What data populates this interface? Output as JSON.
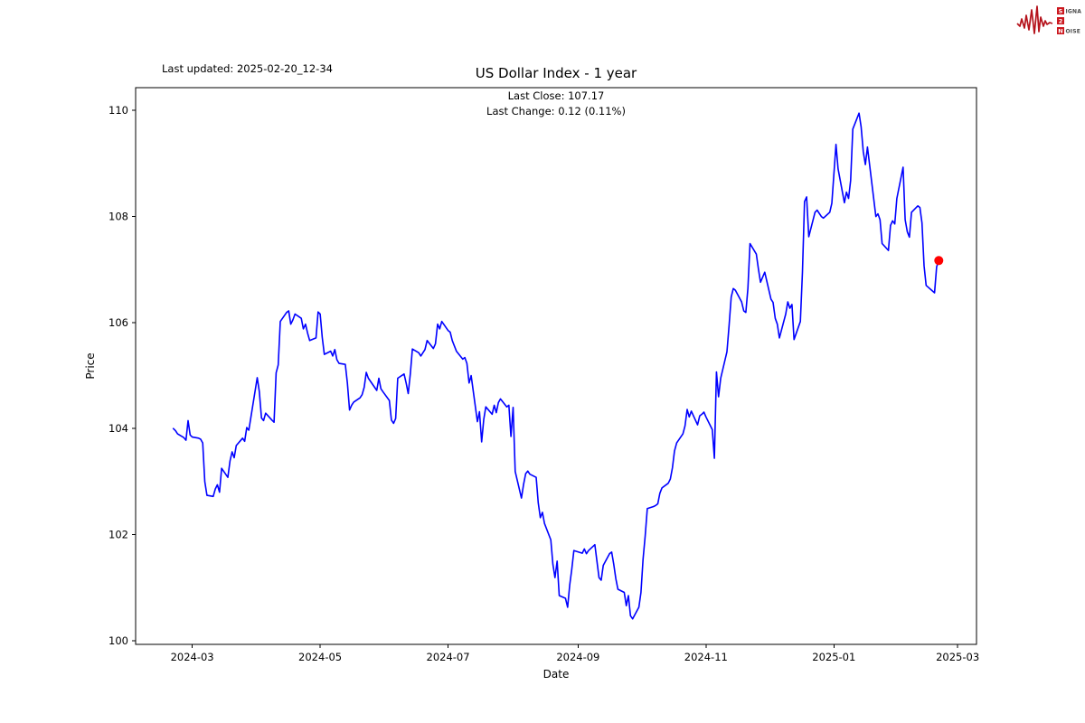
{
  "header": {
    "last_updated": "Last updated: 2025-02-20_12-34",
    "title": "US Dollar Index - 1 year",
    "subtitle_line1": "Last Close: 107.17",
    "subtitle_line2": "Last Change: 0.12 (0.11%)"
  },
  "logo": {
    "row1_boxed": "S",
    "row1_rest": "IGNAL",
    "row2_boxed": "2",
    "row2_rest": "",
    "row3_boxed": "N",
    "row3_rest": "OISE",
    "wave_color": "#b5121b",
    "box_color": "#cb171e",
    "text_color": "#4a4a4a"
  },
  "chart_data": {
    "type": "line",
    "title": "US Dollar Index - 1 year",
    "xlabel": "Date",
    "ylabel": "Price",
    "line_color": "#0000ff",
    "marker_color": "#ff0000",
    "last_close": 107.17,
    "last_change": 0.12,
    "last_change_pct": 0.11,
    "grid": false,
    "x_tick_labels": [
      "2024-03",
      "2024-05",
      "2024-07",
      "2024-09",
      "2024-11",
      "2025-01",
      "2025-03"
    ],
    "x_tick_dates": [
      "2024-03-01",
      "2024-05-01",
      "2024-07-01",
      "2024-09-01",
      "2024-11-01",
      "2025-01-01",
      "2025-03-01"
    ],
    "y_ticks": [
      100,
      102,
      104,
      106,
      108,
      110
    ],
    "ylim": [
      99.93,
      110.43
    ],
    "xlim": [
      "2024-02-03",
      "2025-03-10"
    ],
    "series": [
      {
        "name": "US Dollar Index",
        "points": [
          [
            "2024-02-21",
            104.0
          ],
          [
            "2024-02-22",
            103.96
          ],
          [
            "2024-02-23",
            103.9
          ],
          [
            "2024-02-26",
            103.83
          ],
          [
            "2024-02-27",
            103.78
          ],
          [
            "2024-02-28",
            104.15
          ],
          [
            "2024-02-29",
            103.88
          ],
          [
            "2024-03-01",
            103.84
          ],
          [
            "2024-03-04",
            103.82
          ],
          [
            "2024-03-05",
            103.8
          ],
          [
            "2024-03-06",
            103.73
          ],
          [
            "2024-03-07",
            103.0
          ],
          [
            "2024-03-08",
            102.74
          ],
          [
            "2024-03-11",
            102.72
          ],
          [
            "2024-03-12",
            102.86
          ],
          [
            "2024-03-13",
            102.94
          ],
          [
            "2024-03-14",
            102.8
          ],
          [
            "2024-03-15",
            103.25
          ],
          [
            "2024-03-18",
            103.08
          ],
          [
            "2024-03-19",
            103.39
          ],
          [
            "2024-03-20",
            103.56
          ],
          [
            "2024-03-21",
            103.45
          ],
          [
            "2024-03-22",
            103.68
          ],
          [
            "2024-03-25",
            103.82
          ],
          [
            "2024-03-26",
            103.76
          ],
          [
            "2024-03-27",
            104.02
          ],
          [
            "2024-03-28",
            103.97
          ],
          [
            "2024-04-01",
            104.96
          ],
          [
            "2024-04-02",
            104.7
          ],
          [
            "2024-04-03",
            104.2
          ],
          [
            "2024-04-04",
            104.15
          ],
          [
            "2024-04-05",
            104.29
          ],
          [
            "2024-04-08",
            104.16
          ],
          [
            "2024-04-09",
            104.12
          ],
          [
            "2024-04-10",
            105.05
          ],
          [
            "2024-04-11",
            105.2
          ],
          [
            "2024-04-12",
            106.02
          ],
          [
            "2024-04-15",
            106.19
          ],
          [
            "2024-04-16",
            106.22
          ],
          [
            "2024-04-17",
            105.97
          ],
          [
            "2024-04-18",
            106.05
          ],
          [
            "2024-04-19",
            106.16
          ],
          [
            "2024-04-22",
            106.08
          ],
          [
            "2024-04-23",
            105.88
          ],
          [
            "2024-04-24",
            105.97
          ],
          [
            "2024-04-25",
            105.8
          ],
          [
            "2024-04-26",
            105.66
          ],
          [
            "2024-04-29",
            105.71
          ],
          [
            "2024-04-30",
            106.2
          ],
          [
            "2024-05-01",
            106.16
          ],
          [
            "2024-05-02",
            105.72
          ],
          [
            "2024-05-03",
            105.4
          ],
          [
            "2024-05-06",
            105.46
          ],
          [
            "2024-05-07",
            105.37
          ],
          [
            "2024-05-08",
            105.49
          ],
          [
            "2024-05-09",
            105.3
          ],
          [
            "2024-05-10",
            105.23
          ],
          [
            "2024-05-13",
            105.21
          ],
          [
            "2024-05-14",
            104.86
          ],
          [
            "2024-05-15",
            104.35
          ],
          [
            "2024-05-16",
            104.44
          ],
          [
            "2024-05-17",
            104.5
          ],
          [
            "2024-05-20",
            104.58
          ],
          [
            "2024-05-21",
            104.64
          ],
          [
            "2024-05-22",
            104.78
          ],
          [
            "2024-05-23",
            105.06
          ],
          [
            "2024-05-24",
            104.95
          ],
          [
            "2024-05-28",
            104.72
          ],
          [
            "2024-05-29",
            104.95
          ],
          [
            "2024-05-30",
            104.75
          ],
          [
            "2024-05-31",
            104.69
          ],
          [
            "2024-06-03",
            104.53
          ],
          [
            "2024-06-04",
            104.16
          ],
          [
            "2024-06-05",
            104.1
          ],
          [
            "2024-06-06",
            104.19
          ],
          [
            "2024-06-07",
            104.95
          ],
          [
            "2024-06-10",
            105.03
          ],
          [
            "2024-06-11",
            104.86
          ],
          [
            "2024-06-12",
            104.66
          ],
          [
            "2024-06-13",
            105.03
          ],
          [
            "2024-06-14",
            105.5
          ],
          [
            "2024-06-17",
            105.43
          ],
          [
            "2024-06-18",
            105.37
          ],
          [
            "2024-06-20",
            105.49
          ],
          [
            "2024-06-21",
            105.66
          ],
          [
            "2024-06-24",
            105.51
          ],
          [
            "2024-06-25",
            105.6
          ],
          [
            "2024-06-26",
            105.97
          ],
          [
            "2024-06-27",
            105.88
          ],
          [
            "2024-06-28",
            106.02
          ],
          [
            "2024-07-01",
            105.85
          ],
          [
            "2024-07-02",
            105.82
          ],
          [
            "2024-07-03",
            105.66
          ],
          [
            "2024-07-05",
            105.46
          ],
          [
            "2024-07-08",
            105.31
          ],
          [
            "2024-07-09",
            105.34
          ],
          [
            "2024-07-10",
            105.23
          ],
          [
            "2024-07-11",
            104.86
          ],
          [
            "2024-07-12",
            105.0
          ],
          [
            "2024-07-15",
            104.13
          ],
          [
            "2024-07-16",
            104.32
          ],
          [
            "2024-07-17",
            103.75
          ],
          [
            "2024-07-18",
            104.17
          ],
          [
            "2024-07-19",
            104.41
          ],
          [
            "2024-07-22",
            104.27
          ],
          [
            "2024-07-23",
            104.44
          ],
          [
            "2024-07-24",
            104.3
          ],
          [
            "2024-07-25",
            104.49
          ],
          [
            "2024-07-26",
            104.56
          ],
          [
            "2024-07-29",
            104.41
          ],
          [
            "2024-07-30",
            104.44
          ],
          [
            "2024-07-31",
            103.85
          ],
          [
            "2024-08-01",
            104.4
          ],
          [
            "2024-08-02",
            103.19
          ],
          [
            "2024-08-05",
            102.69
          ],
          [
            "2024-08-06",
            102.95
          ],
          [
            "2024-08-07",
            103.15
          ],
          [
            "2024-08-08",
            103.2
          ],
          [
            "2024-08-09",
            103.14
          ],
          [
            "2024-08-12",
            103.08
          ],
          [
            "2024-08-13",
            102.6
          ],
          [
            "2024-08-14",
            102.32
          ],
          [
            "2024-08-15",
            102.42
          ],
          [
            "2024-08-16",
            102.21
          ],
          [
            "2024-08-19",
            101.9
          ],
          [
            "2024-08-20",
            101.44
          ],
          [
            "2024-08-21",
            101.19
          ],
          [
            "2024-08-22",
            101.5
          ],
          [
            "2024-08-23",
            100.85
          ],
          [
            "2024-08-26",
            100.8
          ],
          [
            "2024-08-27",
            100.63
          ],
          [
            "2024-08-28",
            101.05
          ],
          [
            "2024-08-29",
            101.35
          ],
          [
            "2024-08-30",
            101.7
          ],
          [
            "2024-09-03",
            101.65
          ],
          [
            "2024-09-04",
            101.73
          ],
          [
            "2024-09-05",
            101.64
          ],
          [
            "2024-09-06",
            101.7
          ],
          [
            "2024-09-09",
            101.81
          ],
          [
            "2024-09-10",
            101.5
          ],
          [
            "2024-09-11",
            101.19
          ],
          [
            "2024-09-12",
            101.14
          ],
          [
            "2024-09-13",
            101.42
          ],
          [
            "2024-09-16",
            101.64
          ],
          [
            "2024-09-17",
            101.67
          ],
          [
            "2024-09-18",
            101.44
          ],
          [
            "2024-09-19",
            101.17
          ],
          [
            "2024-09-20",
            100.97
          ],
          [
            "2024-09-23",
            100.91
          ],
          [
            "2024-09-24",
            100.66
          ],
          [
            "2024-09-25",
            100.85
          ],
          [
            "2024-09-26",
            100.47
          ],
          [
            "2024-09-27",
            100.41
          ],
          [
            "2024-09-30",
            100.63
          ],
          [
            "2024-10-01",
            100.91
          ],
          [
            "2024-10-02",
            101.53
          ],
          [
            "2024-10-03",
            101.98
          ],
          [
            "2024-10-04",
            102.49
          ],
          [
            "2024-10-07",
            102.53
          ],
          [
            "2024-10-08",
            102.55
          ],
          [
            "2024-10-09",
            102.58
          ],
          [
            "2024-10-10",
            102.78
          ],
          [
            "2024-10-11",
            102.88
          ],
          [
            "2024-10-14",
            102.97
          ],
          [
            "2024-10-15",
            103.05
          ],
          [
            "2024-10-16",
            103.26
          ],
          [
            "2024-10-17",
            103.58
          ],
          [
            "2024-10-18",
            103.73
          ],
          [
            "2024-10-21",
            103.9
          ],
          [
            "2024-10-22",
            104.05
          ],
          [
            "2024-10-23",
            104.36
          ],
          [
            "2024-10-24",
            104.22
          ],
          [
            "2024-10-25",
            104.33
          ],
          [
            "2024-10-28",
            104.07
          ],
          [
            "2024-10-29",
            104.24
          ],
          [
            "2024-10-30",
            104.27
          ],
          [
            "2024-10-31",
            104.31
          ],
          [
            "2024-11-01",
            104.22
          ],
          [
            "2024-11-04",
            103.98
          ],
          [
            "2024-11-05",
            103.44
          ],
          [
            "2024-11-06",
            105.07
          ],
          [
            "2024-11-07",
            104.6
          ],
          [
            "2024-11-08",
            104.95
          ],
          [
            "2024-11-11",
            105.45
          ],
          [
            "2024-11-12",
            105.93
          ],
          [
            "2024-11-13",
            106.48
          ],
          [
            "2024-11-14",
            106.64
          ],
          [
            "2024-11-15",
            106.61
          ],
          [
            "2024-11-18",
            106.39
          ],
          [
            "2024-11-19",
            106.22
          ],
          [
            "2024-11-20",
            106.19
          ],
          [
            "2024-11-21",
            106.65
          ],
          [
            "2024-11-22",
            107.49
          ],
          [
            "2024-11-25",
            107.29
          ],
          [
            "2024-11-26",
            107.01
          ],
          [
            "2024-11-27",
            106.76
          ],
          [
            "2024-11-29",
            106.95
          ],
          [
            "2024-12-02",
            106.44
          ],
          [
            "2024-12-03",
            106.38
          ],
          [
            "2024-12-04",
            106.08
          ],
          [
            "2024-12-05",
            105.97
          ],
          [
            "2024-12-06",
            105.71
          ],
          [
            "2024-12-09",
            106.16
          ],
          [
            "2024-12-10",
            106.39
          ],
          [
            "2024-12-11",
            106.27
          ],
          [
            "2024-12-12",
            106.34
          ],
          [
            "2024-12-13",
            105.68
          ],
          [
            "2024-12-16",
            106.02
          ],
          [
            "2024-12-17",
            106.95
          ],
          [
            "2024-12-18",
            108.28
          ],
          [
            "2024-12-19",
            108.37
          ],
          [
            "2024-12-20",
            107.62
          ],
          [
            "2024-12-23",
            108.08
          ],
          [
            "2024-12-24",
            108.12
          ],
          [
            "2024-12-26",
            108.0
          ],
          [
            "2024-12-27",
            107.97
          ],
          [
            "2024-12-30",
            108.08
          ],
          [
            "2024-12-31",
            108.25
          ],
          [
            "2025-01-02",
            109.36
          ],
          [
            "2025-01-03",
            108.9
          ],
          [
            "2025-01-06",
            108.26
          ],
          [
            "2025-01-07",
            108.46
          ],
          [
            "2025-01-08",
            108.34
          ],
          [
            "2025-01-09",
            108.68
          ],
          [
            "2025-01-10",
            109.65
          ],
          [
            "2025-01-13",
            109.95
          ],
          [
            "2025-01-14",
            109.69
          ],
          [
            "2025-01-15",
            109.22
          ],
          [
            "2025-01-16",
            108.98
          ],
          [
            "2025-01-17",
            109.31
          ],
          [
            "2025-01-21",
            108.0
          ],
          [
            "2025-01-22",
            108.05
          ],
          [
            "2025-01-23",
            107.94
          ],
          [
            "2025-01-24",
            107.49
          ],
          [
            "2025-01-27",
            107.36
          ],
          [
            "2025-01-28",
            107.83
          ],
          [
            "2025-01-29",
            107.92
          ],
          [
            "2025-01-30",
            107.86
          ],
          [
            "2025-01-31",
            108.34
          ],
          [
            "2025-02-03",
            108.93
          ],
          [
            "2025-02-04",
            107.94
          ],
          [
            "2025-02-05",
            107.71
          ],
          [
            "2025-02-06",
            107.61
          ],
          [
            "2025-02-07",
            108.08
          ],
          [
            "2025-02-10",
            108.2
          ],
          [
            "2025-02-11",
            108.17
          ],
          [
            "2025-02-12",
            107.88
          ],
          [
            "2025-02-13",
            107.07
          ],
          [
            "2025-02-14",
            106.7
          ],
          [
            "2025-02-18",
            106.56
          ],
          [
            "2025-02-19",
            107.05
          ],
          [
            "2025-02-20",
            107.17
          ]
        ]
      }
    ]
  }
}
